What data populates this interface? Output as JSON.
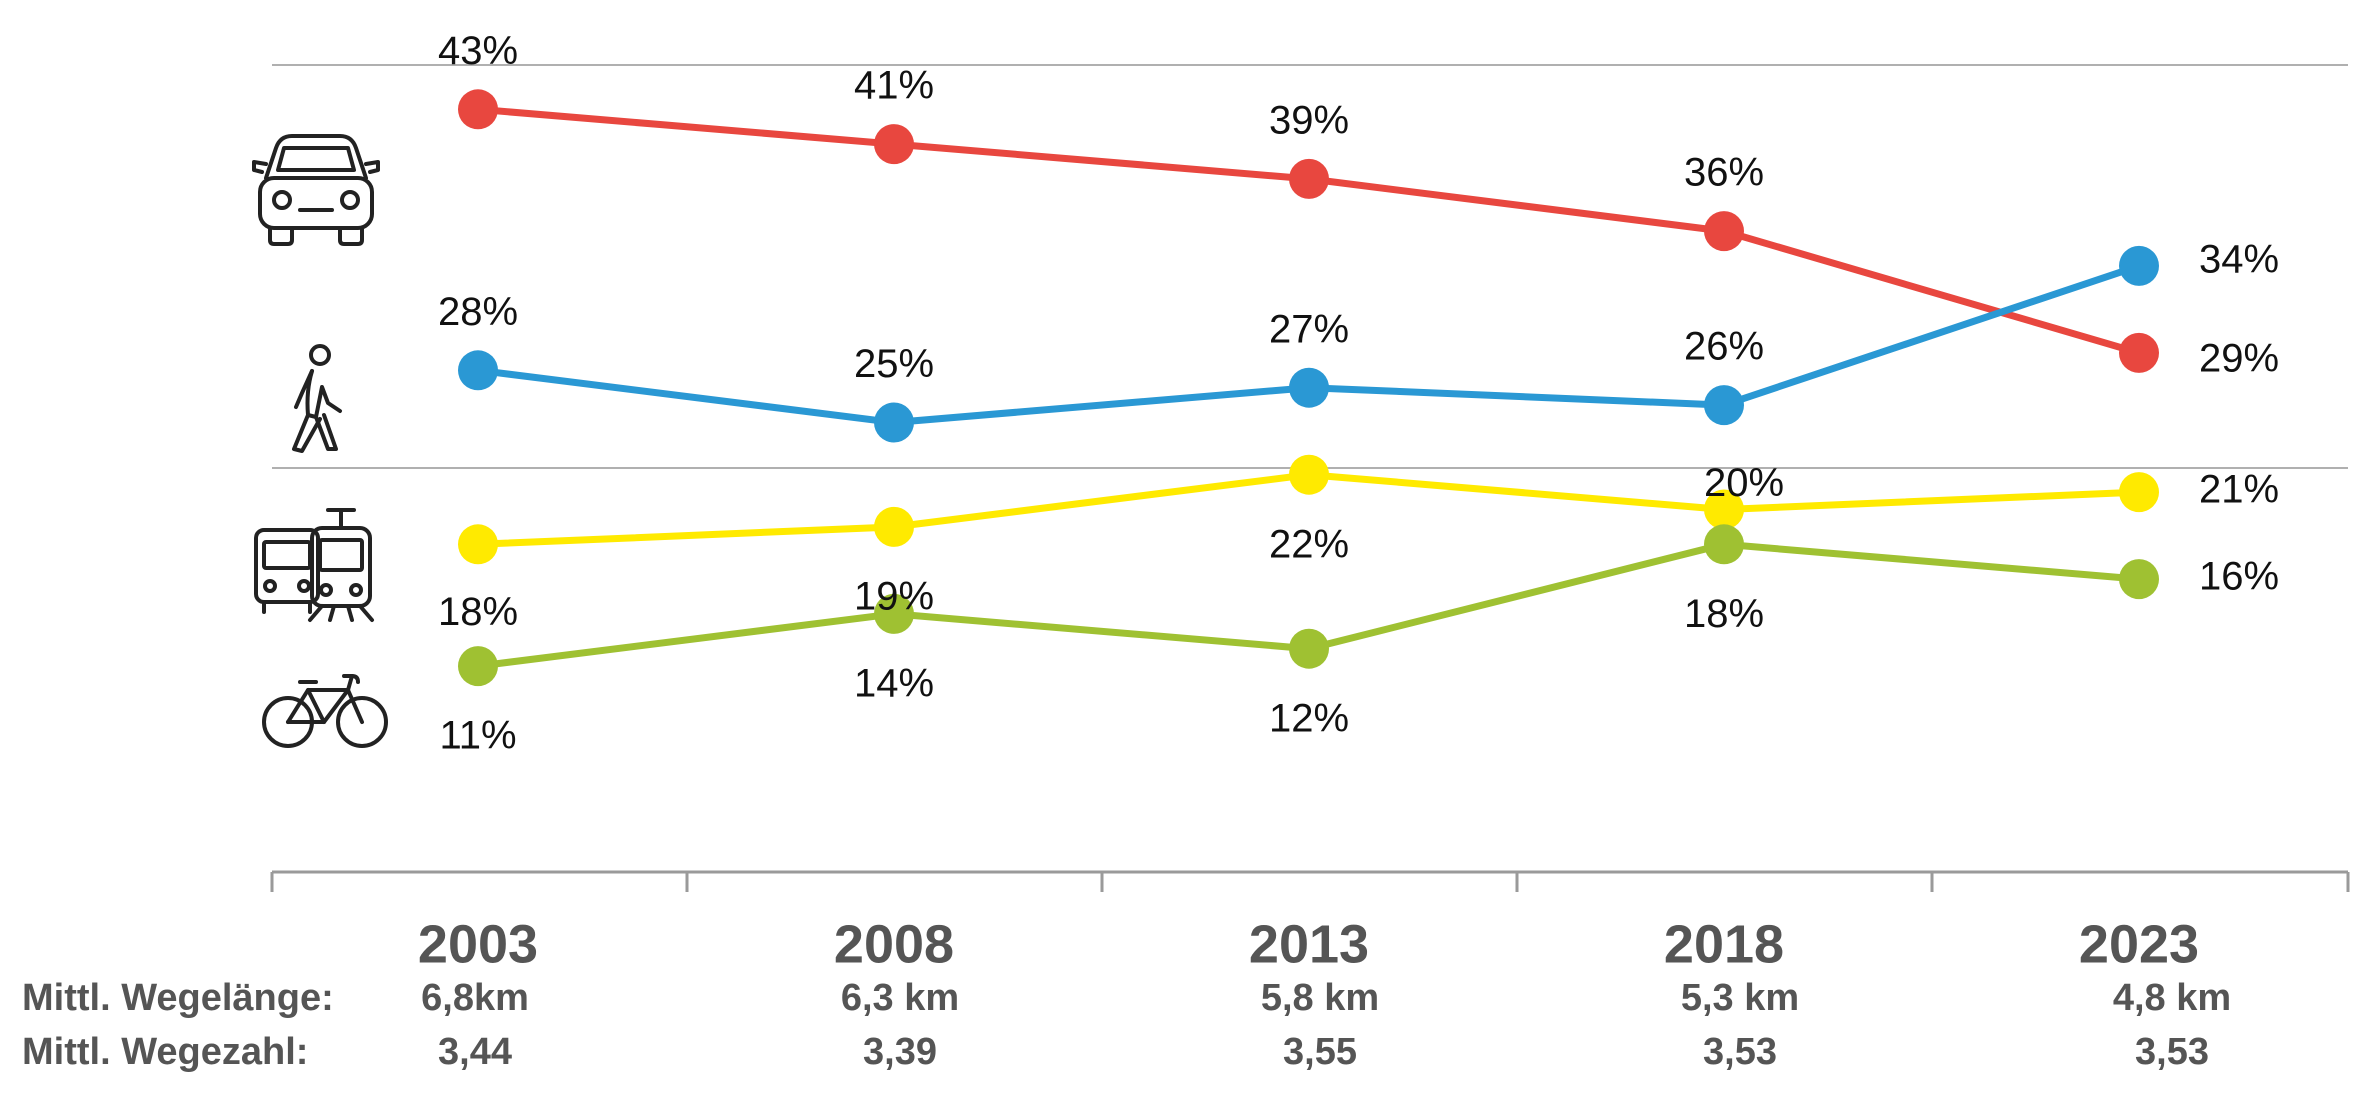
{
  "chart_data": {
    "type": "line",
    "title": "",
    "xlabel": "",
    "ylabel": "",
    "categories": [
      "2003",
      "2008",
      "2013",
      "2018",
      "2023"
    ],
    "ylim": [
      0,
      50
    ],
    "grid": false,
    "series": [
      {
        "name": "car-icon",
        "color": "#e8473f",
        "values": [
          43,
          41,
          39,
          36,
          29
        ],
        "labels": [
          "43%",
          "41%",
          "39%",
          "36%",
          "29%"
        ]
      },
      {
        "name": "pedestrian-icon",
        "color": "#2a98d4",
        "values": [
          28,
          25,
          27,
          26,
          34
        ],
        "labels": [
          "28%",
          "25%",
          "27%",
          "26%",
          "34%"
        ]
      },
      {
        "name": "public-transport-icon",
        "color": "#ffea00",
        "values": [
          18,
          19,
          22,
          20,
          21
        ],
        "labels": [
          "18%",
          "19%",
          "22%",
          "20%",
          "21%"
        ]
      },
      {
        "name": "bicycle-icon",
        "color": "#9fc132",
        "values": [
          11,
          14,
          12,
          18,
          16
        ],
        "labels": [
          "11%",
          "14%",
          "12%",
          "18%",
          "16%"
        ]
      }
    ]
  },
  "table_rows": [
    {
      "label": "Mittl. Wegelänge:",
      "values": [
        "6,8km",
        "6,3 km",
        "5,8 km",
        "5,3 km",
        "4,8 km"
      ]
    },
    {
      "label": "Mittl. Wegezahl:",
      "values": [
        "3,44",
        "3,39",
        "3,55",
        "3,53",
        "3,53"
      ]
    }
  ],
  "colors": {
    "axis": "#9a9a9a",
    "text_dark": "#111111",
    "text_grey": "#555555"
  }
}
